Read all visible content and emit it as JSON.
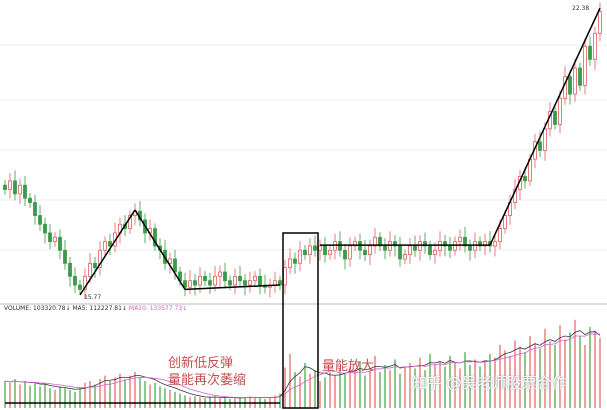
{
  "chart_data": {
    "type": "candlestick",
    "title": "",
    "price_labels": {
      "low": "15.77",
      "high": "22.38"
    },
    "up_color": "#e06060",
    "down_color": "#3a9a4a",
    "closes": [
      18.2,
      18.4,
      18.1,
      18.3,
      18.0,
      17.9,
      17.6,
      17.4,
      17.2,
      17.0,
      17.1,
      16.8,
      16.5,
      16.2,
      16.0,
      15.9,
      16.2,
      16.5,
      16.4,
      16.8,
      17.0,
      16.9,
      17.2,
      17.4,
      17.3,
      17.6,
      17.7,
      17.5,
      17.2,
      17.3,
      16.9,
      16.8,
      16.5,
      16.6,
      16.3,
      16.1,
      15.95,
      16.1,
      16.0,
      16.2,
      16.1,
      16.0,
      16.2,
      16.3,
      16.1,
      16.0,
      16.2,
      16.1,
      16.0,
      16.1,
      16.2,
      16.0,
      15.95,
      16.0,
      16.1,
      16.0,
      16.4,
      16.6,
      16.5,
      16.8,
      16.7,
      16.9,
      16.8,
      16.9,
      16.7,
      16.8,
      17.0,
      16.8,
      16.6,
      16.9,
      17.0,
      16.8,
      16.7,
      16.9,
      17.1,
      16.9,
      16.8,
      17.0,
      16.9,
      16.6,
      16.7,
      16.9,
      16.8,
      17.0,
      16.9,
      16.7,
      16.8,
      17.0,
      16.9,
      16.8,
      17.0,
      17.1,
      16.9,
      16.8,
      17.0,
      16.9,
      17.0,
      16.9,
      17.0,
      17.3,
      17.6,
      17.9,
      18.2,
      18.5,
      18.4,
      18.9,
      19.3,
      19.1,
      19.6,
      20.0,
      19.7,
      20.3,
      20.8,
      20.4,
      21.0,
      20.6,
      21.5,
      21.2,
      21.8,
      22.3
    ],
    "volumes": [
      30,
      28,
      32,
      26,
      30,
      25,
      28,
      24,
      26,
      22,
      20,
      24,
      22,
      20,
      18,
      22,
      28,
      30,
      26,
      32,
      36,
      30,
      34,
      38,
      32,
      36,
      40,
      34,
      30,
      26,
      28,
      24,
      22,
      20,
      18,
      16,
      14,
      12,
      13,
      12,
      11,
      12,
      13,
      11,
      12,
      10,
      12,
      11,
      12,
      13,
      11,
      12,
      10,
      12,
      14,
      16,
      45,
      60,
      40,
      35,
      50,
      38,
      42,
      30,
      34,
      40,
      36,
      44,
      38,
      46,
      40,
      52,
      36,
      44,
      58,
      40,
      48,
      42,
      54,
      38,
      46,
      50,
      44,
      56,
      42,
      60,
      48,
      52,
      46,
      58,
      50,
      44,
      62,
      48,
      54,
      46,
      52,
      60,
      56,
      70,
      64,
      58,
      75,
      68,
      62,
      80,
      72,
      66,
      88,
      74,
      70,
      92,
      76,
      84,
      98,
      80,
      70,
      90,
      86,
      78
    ],
    "annotations": {
      "low_label": "15.77",
      "high_label": "22.38"
    }
  },
  "volume_legend": {
    "volume": "VOLUME: 103320.78↓",
    "ma5": "MA5: 112227.81↓",
    "ma10": "MA10: 133577.73↓"
  },
  "notes": {
    "left_line1": "创新低反弹",
    "left_line2": "量能再次萎缩",
    "right": "量能放大"
  },
  "watermark": "知乎 @吴老师股票合作"
}
